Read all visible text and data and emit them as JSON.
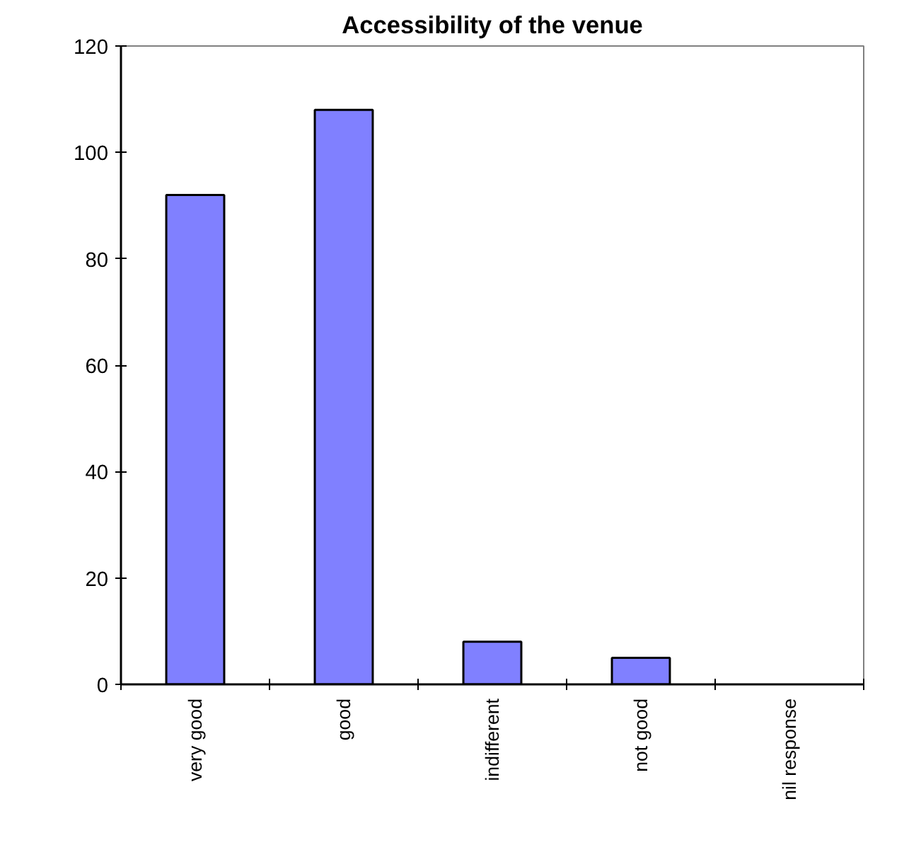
{
  "chart_data": {
    "type": "bar",
    "title": "Accessibility of the venue",
    "categories": [
      "very good",
      "good",
      "indifferent",
      "not good",
      "nil response"
    ],
    "values": [
      92,
      108,
      8,
      5,
      0
    ],
    "color": "#8080ff",
    "ylim": [
      0,
      120
    ],
    "yticks": [
      0,
      20,
      40,
      60,
      80,
      100,
      120
    ],
    "grid": false
  }
}
